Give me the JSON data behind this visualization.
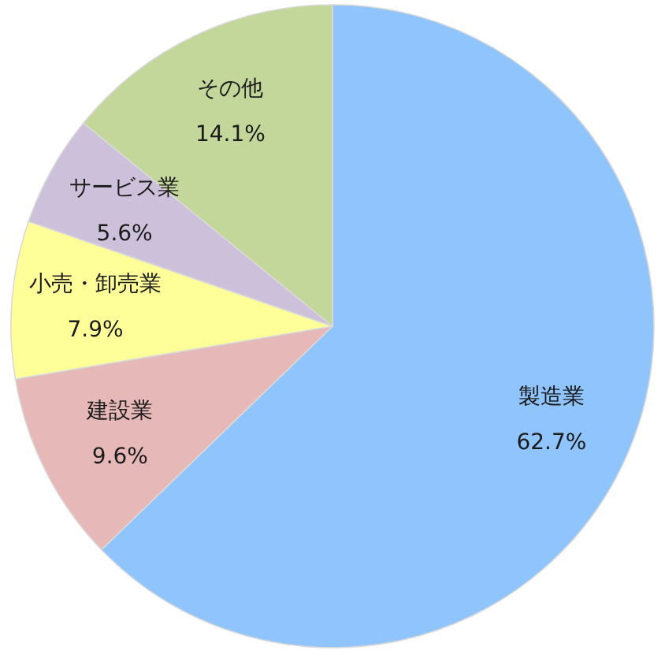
{
  "chart_data": {
    "type": "pie",
    "categories": [
      "製造業",
      "建設業",
      "小売・卸売業",
      "サービス業",
      "その他"
    ],
    "values": [
      62.7,
      9.6,
      7.9,
      5.6,
      14.1
    ],
    "value_labels": [
      "62.7%",
      "9.6%",
      "7.9%",
      "5.6%",
      "14.1%"
    ],
    "colors": [
      "#8fc5fc",
      "#e6b8b7",
      "#ffff99",
      "#ccc0da",
      "#c4d79b"
    ]
  }
}
